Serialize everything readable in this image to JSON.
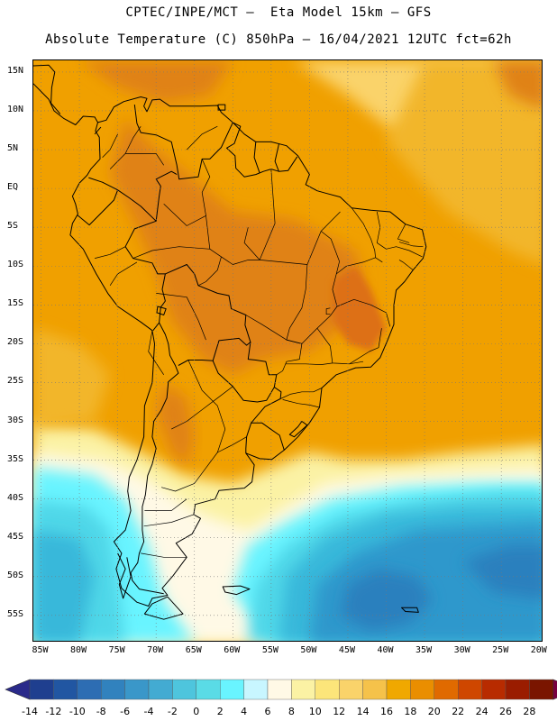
{
  "header": {
    "line1": "CPTEC/INPE/MCT –  Eta Model 15km – GFS",
    "line2": "Absolute Temperature (C) 850hPa – 16/04/2021 12UTC fct=62h"
  },
  "map": {
    "lat_ticks": [
      "15N",
      "10N",
      "5N",
      "EQ",
      "5S",
      "10S",
      "15S",
      "20S",
      "25S",
      "30S",
      "35S",
      "40S",
      "45S",
      "50S",
      "55S"
    ],
    "lat_values": [
      15,
      10,
      5,
      0,
      -5,
      -10,
      -15,
      -20,
      -25,
      -30,
      -35,
      -40,
      -45,
      -50,
      -55
    ],
    "lon_ticks": [
      "85W",
      "80W",
      "75W",
      "70W",
      "65W",
      "60W",
      "55W",
      "50W",
      "45W",
      "40W",
      "35W",
      "30W",
      "25W",
      "20W"
    ],
    "lon_values": [
      -85,
      -80,
      -75,
      -70,
      -65,
      -60,
      -55,
      -50,
      -45,
      -40,
      -35,
      -30,
      -25,
      -20
    ],
    "lon_range": [
      -86,
      -19.5
    ],
    "lat_range": [
      -58.5,
      16.5
    ],
    "grid": "dotted",
    "field_colors": {
      "warm_land": "#f0a000",
      "hot_core": "#e08218",
      "orange_sea": "#f2b62a",
      "yellow": "#fad36a",
      "pale": "#fbf2a4",
      "cream": "#fff9e6",
      "cyan": "#69f4ff",
      "cyan_mid": "#4fd7e8",
      "blue_light": "#39b8da",
      "blue_mid": "#2d98cc",
      "blue_deep": "#2b80be"
    }
  },
  "colorbar": {
    "labels": [
      "-14",
      "-12",
      "-10",
      "-8",
      "-6",
      "-4",
      "-2",
      "0",
      "2",
      "4",
      "6",
      "8",
      "10",
      "12",
      "14",
      "16",
      "18",
      "20",
      "22",
      "24",
      "26",
      "28"
    ],
    "colors": [
      "#1f3f8f",
      "#2156a2",
      "#2d6db3",
      "#3182be",
      "#3a97c9",
      "#43abd2",
      "#4ec5dd",
      "#5adbe6",
      "#69f4ff",
      "#c8f6ff",
      "#fff9e6",
      "#fbf2a4",
      "#fce57a",
      "#fad36a",
      "#f5c24a",
      "#f0a800",
      "#ea8e00",
      "#e06a00",
      "#cf4700",
      "#b82b00",
      "#9a1c00",
      "#7a1500"
    ],
    "low_arrow_color": "#2a2a8a",
    "high_arrow_color": "#780040"
  }
}
